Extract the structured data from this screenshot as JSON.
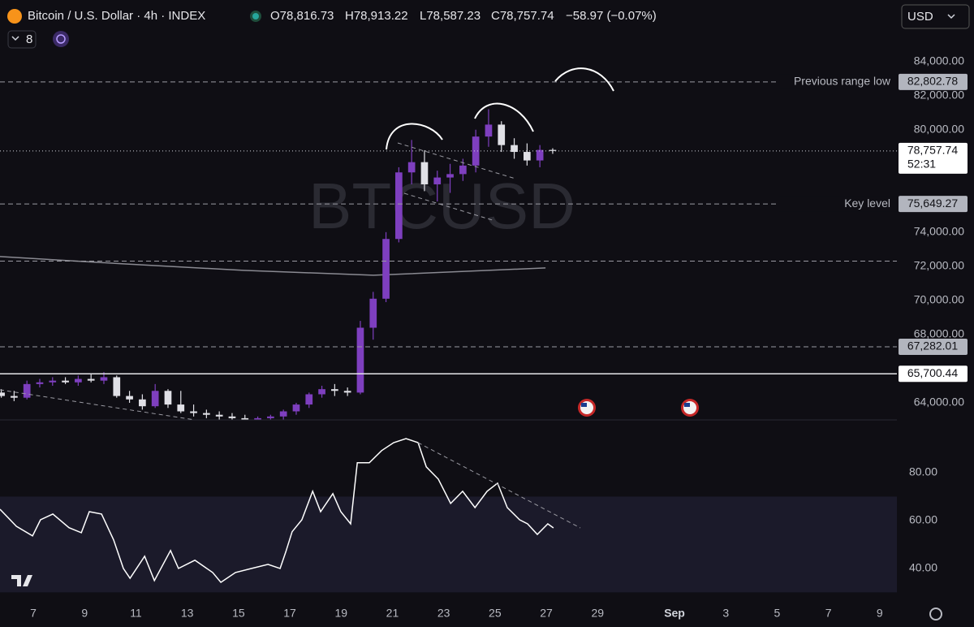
{
  "header": {
    "symbol": "Bitcoin / U.S. Dollar · 4h · INDEX",
    "open": "O78,816.73",
    "high": "H78,913.22",
    "low": "L78,587.23",
    "close": "C78,757.74",
    "change": "−58.97 (−0.07%)",
    "indicator_count": "8",
    "currency": "USD"
  },
  "chart_data": [
    {
      "type": "candlestick",
      "watermark": "BTCUSD",
      "up_color": "#7e3fbf",
      "down_color": "#e0e0e6",
      "xlim": [
        5.7,
        40.67
      ],
      "ylim": [
        63000,
        87600
      ],
      "yticks": [
        {
          "value": 84000,
          "label": "84,000.00"
        },
        {
          "value": 82000,
          "label": "82,000.00"
        },
        {
          "value": 80000,
          "label": "80,000.00"
        },
        {
          "value": 74000,
          "label": "74,000.00"
        },
        {
          "value": 72000,
          "label": "72,000.00"
        },
        {
          "value": 70000,
          "label": "70,000.00"
        },
        {
          "value": 68000,
          "label": "68,000.00"
        },
        {
          "value": 64000,
          "label": "64,000.00"
        }
      ],
      "x": [
        5.75,
        6.25,
        6.75,
        7.25,
        7.75,
        8.25,
        8.75,
        9.25,
        9.75,
        10.25,
        10.75,
        11.25,
        11.75,
        12.25,
        12.75,
        13.25,
        13.75,
        14.25,
        14.75,
        15.25,
        15.75,
        16.25,
        16.75,
        17.25,
        17.75,
        18.25,
        18.75,
        19.25,
        19.75,
        20.25,
        20.75,
        21.25,
        21.75,
        22.25,
        22.75,
        23.25,
        23.75,
        24.25,
        24.75,
        25.25,
        25.75,
        26.25,
        26.75,
        27.25
      ],
      "open": [
        64600,
        64400,
        64300,
        65100,
        65200,
        65300,
        65200,
        65400,
        65300,
        65500,
        64400,
        64200,
        63800,
        64700,
        63900,
        63500,
        63400,
        63300,
        63200,
        63100,
        63000,
        63100,
        63200,
        63500,
        63900,
        64500,
        64800,
        64700,
        64600,
        68400,
        70100,
        73600,
        77500,
        78100,
        76800,
        77200,
        77400,
        77900,
        79600,
        80300,
        79100,
        78700,
        78200,
        78816.73
      ],
      "high": [
        64800,
        64700,
        65300,
        65400,
        65500,
        65500,
        65600,
        65700,
        65800,
        65600,
        64700,
        64500,
        65100,
        64800,
        64700,
        63900,
        63600,
        63500,
        63400,
        63300,
        63200,
        63300,
        63600,
        64000,
        64600,
        65000,
        65100,
        64900,
        68800,
        70500,
        74000,
        77800,
        79400,
        78800,
        77600,
        78000,
        78300,
        80000,
        81200,
        80500,
        79500,
        79200,
        79100,
        78913.22
      ],
      "low": [
        64300,
        64100,
        64200,
        64900,
        65000,
        65100,
        65000,
        65200,
        65100,
        64300,
        64000,
        63600,
        63700,
        63700,
        63400,
        63200,
        63100,
        63000,
        62900,
        62900,
        62900,
        62900,
        63000,
        63300,
        63700,
        64300,
        64400,
        64400,
        64500,
        67700,
        69900,
        73400,
        76800,
        76400,
        75800,
        76300,
        77000,
        77500,
        79000,
        78700,
        78300,
        77900,
        77800,
        78587.23
      ],
      "close": [
        64400,
        64300,
        65100,
        65200,
        65300,
        65200,
        65400,
        65300,
        65500,
        64400,
        64200,
        63800,
        64700,
        63900,
        63500,
        63400,
        63300,
        63200,
        63100,
        63000,
        63100,
        63200,
        63500,
        63900,
        64500,
        64800,
        64700,
        64600,
        68400,
        70100,
        73600,
        77500,
        78100,
        76800,
        77200,
        77400,
        77900,
        79600,
        80300,
        79100,
        78700,
        78200,
        78816.73,
        78757.74
      ],
      "ma": {
        "color": "#8a8a92",
        "x": [
          5.7,
          10.45,
          15.2,
          20.26,
          26.97
        ],
        "values": [
          72571,
          72143,
          71762,
          71476,
          71905
        ]
      },
      "levels": [
        {
          "value": 82802.78,
          "label": "82,802.78",
          "name": "Previous range low",
          "style": "dashed",
          "color": "#9a9aa2",
          "box": "#b2b5be"
        },
        {
          "value": 75649.27,
          "label": "75,649.27",
          "name": "Key level",
          "style": "dashed",
          "color": "#9a9aa2",
          "box": "#b2b5be"
        },
        {
          "value": 72300,
          "style": "dashed",
          "color": "#9a9aa2"
        },
        {
          "value": 67282.01,
          "label": "67,282.01",
          "style": "dashed",
          "color": "#9a9aa2",
          "box": "#b2b5be"
        },
        {
          "value": 65700.44,
          "label": "65,700.44",
          "style": "solid",
          "color": "#e6e6ea",
          "box": "#ffffff"
        }
      ],
      "last_price": {
        "value": 78757.74,
        "label": "78,757.74",
        "countdown": "52:31",
        "style": "dotted",
        "color": "#d1d4dc"
      }
    },
    {
      "type": "line",
      "color": "#ffffff",
      "band": [
        30,
        70
      ],
      "band_color": "#1b1a2a",
      "xlim": [
        5.7,
        40.67
      ],
      "ylim": [
        24.7,
        102
      ],
      "yticks": [
        {
          "value": 80,
          "label": "80.00"
        },
        {
          "value": 60,
          "label": "60.00"
        },
        {
          "value": 40,
          "label": "40.00"
        }
      ],
      "xticks": [
        7,
        9,
        11,
        13,
        15,
        17,
        19,
        21,
        23,
        25,
        27,
        29,
        {
          "value": 32,
          "label": "Sep"
        },
        {
          "value": 34,
          "label": "3"
        },
        {
          "value": 36,
          "label": "5"
        },
        {
          "value": 38,
          "label": "7"
        },
        {
          "value": 40,
          "label": "9"
        }
      ],
      "x": [
        5.7,
        6.34,
        6.97,
        7.28,
        7.76,
        8.39,
        8.87,
        9.18,
        9.66,
        10.13,
        10.51,
        10.77,
        11.34,
        11.72,
        12.35,
        12.66,
        13.3,
        13.99,
        14.31,
        14.88,
        15.51,
        16.15,
        16.62,
        16.84,
        17.09,
        17.47,
        17.89,
        18.2,
        18.68,
        18.99,
        19.37,
        19.63,
        20.1,
        20.58,
        21.05,
        21.53,
        22.0,
        22.32,
        22.79,
        23.27,
        23.74,
        24.22,
        24.69,
        25.1,
        25.48,
        25.96,
        26.27,
        26.65,
        27.06,
        27.28
      ],
      "values": [
        64.7,
        57.6,
        53.6,
        60.3,
        62.7,
        57.0,
        54.9,
        63.7,
        62.7,
        51.9,
        40.0,
        35.9,
        45.1,
        34.9,
        47.5,
        40.0,
        43.4,
        38.3,
        34.2,
        38.3,
        40.0,
        41.7,
        40.0,
        46.8,
        55.3,
        60.3,
        72.2,
        63.7,
        71.2,
        63.7,
        58.6,
        84.1,
        84.1,
        89.2,
        92.5,
        94.2,
        92.5,
        82.4,
        77.3,
        67.1,
        72.2,
        65.4,
        72.2,
        75.6,
        65.4,
        60.3,
        58.6,
        54.2,
        58.6,
        56.9
      ]
    }
  ]
}
